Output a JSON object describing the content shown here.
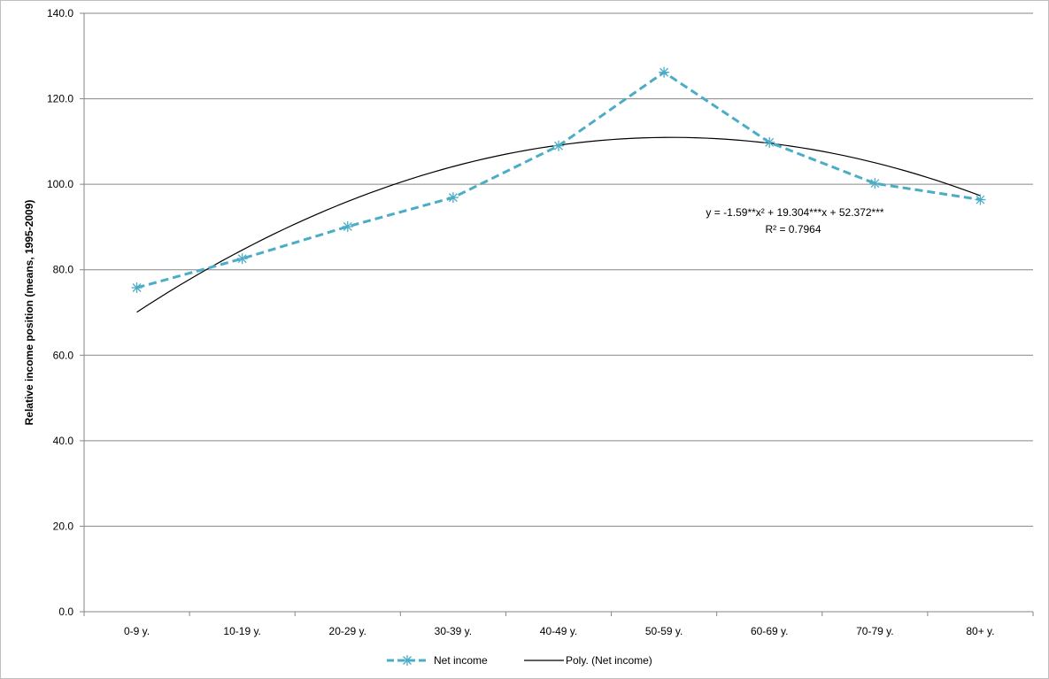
{
  "chart_data": {
    "type": "line",
    "title": "",
    "xlabel": "",
    "ylabel": "Relative income position (means, 1995-2009)",
    "ylim": [
      0,
      140
    ],
    "yticks": [
      "0.0",
      "20.0",
      "40.0",
      "60.0",
      "80.0",
      "100.0",
      "120.0",
      "140.0"
    ],
    "categories": [
      "0-9 y.",
      "10-19 y.",
      "20-29 y.",
      "30-39 y.",
      "40-49 y.",
      "50-59 y.",
      "60-69 y.",
      "70-79 y.",
      "80+ y."
    ],
    "series": [
      {
        "name": "Net income",
        "values": [
          75.8,
          82.6,
          90.1,
          96.9,
          109.0,
          126.2,
          109.8,
          100.2,
          96.4
        ],
        "color": "#4bacc6",
        "style": "dashed",
        "marker": "asterisk"
      },
      {
        "name": "Poly. (Net income)",
        "type": "trendline",
        "equation_coefficients": {
          "a": -1.59,
          "b": 19.304,
          "c": 52.372
        },
        "color": "#000000",
        "style": "solid"
      }
    ],
    "trendline_label": {
      "equation": "y = -1.59**x² + 19.304***x + 52.372***",
      "r_squared": "R² = 0.7964"
    },
    "grid": true,
    "legend": "bottom"
  }
}
